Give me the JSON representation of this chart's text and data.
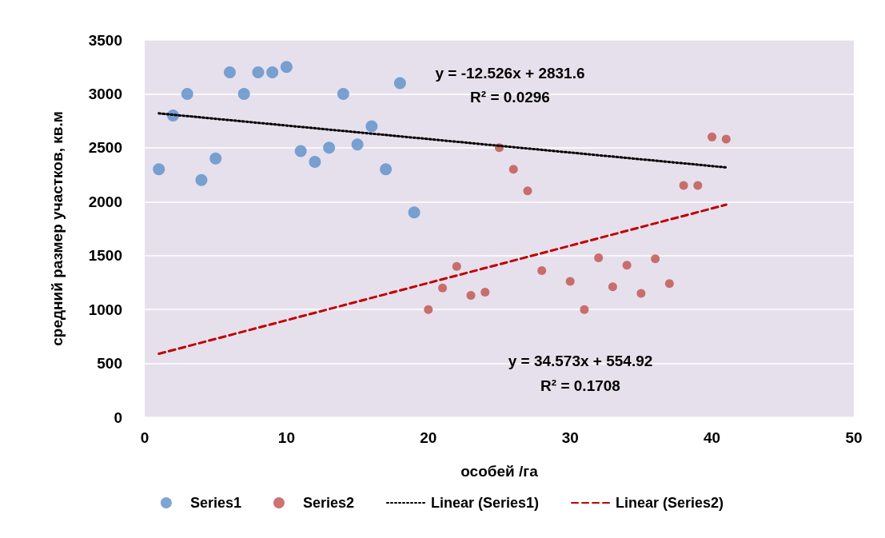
{
  "chart_data": {
    "type": "scatter",
    "xlabel": "особей /га",
    "ylabel": "средний размер участков, кв.м",
    "xlim": [
      0,
      50
    ],
    "xticks": [
      0,
      10,
      20,
      30,
      40,
      50
    ],
    "ylim": [
      0,
      3500
    ],
    "yticks": [
      0,
      500,
      1000,
      1500,
      2000,
      2500,
      3000,
      3500
    ],
    "grid": "y",
    "legend": "bottom",
    "marker": "circle",
    "series": [
      {
        "name": "Series1",
        "color": "#5b8fc9",
        "x": [
          1,
          2,
          3,
          4,
          5,
          6,
          7,
          8,
          9,
          10,
          11,
          12,
          13,
          14,
          15,
          16,
          17,
          18,
          19
        ],
        "values": [
          2300,
          2800,
          3000,
          2200,
          2400,
          3200,
          3000,
          3200,
          3200,
          3250,
          2470,
          2370,
          2500,
          3000,
          2530,
          2700,
          2300,
          3100,
          1900
        ]
      },
      {
        "name": "Series2",
        "color": "#c0504d",
        "x": [
          20,
          21,
          22,
          23,
          24,
          25,
          26,
          27,
          28,
          30,
          31,
          32,
          33,
          34,
          35,
          36,
          37,
          38,
          39,
          40,
          41
        ],
        "values": [
          1000,
          1200,
          1400,
          1130,
          1160,
          2500,
          2300,
          2100,
          1360,
          1260,
          1000,
          1480,
          1210,
          1410,
          1150,
          1470,
          1240,
          2150,
          2150,
          2600,
          2580
        ]
      },
      {
        "name": "Linear (Series1)",
        "type": "line",
        "color": "#000000",
        "marker": "none",
        "line_style": "dotted",
        "x": [
          1,
          41
        ],
        "values": [
          2819,
          2318
        ]
      },
      {
        "name": "Linear (Series2)",
        "type": "line",
        "color": "#c00000",
        "marker": "none",
        "line_style": "dashed",
        "x": [
          1,
          41
        ],
        "values": [
          589,
          1972
        ]
      }
    ],
    "annotations": [
      "y = -12.526x + 2831.6",
      "R² = 0.0296",
      "y = 34.573x + 554.92",
      "R² = 0.1708"
    ]
  }
}
